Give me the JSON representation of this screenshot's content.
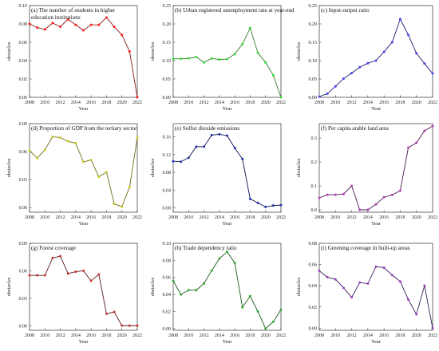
{
  "chart_data": [
    {
      "type": "line",
      "title_lines": [
        "(a) The number of students in higher",
        "education institutions"
      ],
      "xlabel": "Year",
      "ylabel": "obstacles",
      "x": [
        2008,
        2009,
        2010,
        2011,
        2012,
        2013,
        2014,
        2015,
        2016,
        2017,
        2018,
        2019,
        2020,
        2021,
        2022
      ],
      "y": [
        0.08,
        0.076,
        0.074,
        0.081,
        0.077,
        0.085,
        0.079,
        0.073,
        0.079,
        0.079,
        0.087,
        0.077,
        0.068,
        0.05,
        0.0
      ],
      "ylim": [
        0,
        0.1
      ],
      "yticks": [
        "0.00",
        "0.02",
        "0.04",
        "0.06",
        "0.08",
        "0.10"
      ],
      "xticks": [
        "2008",
        "2010",
        "2012",
        "2014",
        "2016",
        "2018",
        "2020",
        "2022"
      ],
      "line_color": "#8b1a1a",
      "marker_color": "#ff1a1a"
    },
    {
      "type": "line",
      "title_lines": [
        "(b) Urban registered unemployment rate at year-end"
      ],
      "xlabel": "Year",
      "ylabel": "obstacles",
      "x": [
        2008,
        2009,
        2010,
        2011,
        2012,
        2013,
        2014,
        2015,
        2016,
        2017,
        2018,
        2019,
        2020,
        2021,
        2022
      ],
      "y": [
        0.105,
        0.105,
        0.106,
        0.11,
        0.095,
        0.106,
        0.103,
        0.104,
        0.118,
        0.145,
        0.189,
        0.121,
        0.095,
        0.06,
        0.0
      ],
      "ylim": [
        0,
        0.25
      ],
      "yticks": [
        "0.00",
        "0.05",
        "0.10",
        "0.15",
        "0.20",
        "0.25"
      ],
      "xticks": [
        "2008",
        "2010",
        "2012",
        "2014",
        "2016",
        "2018",
        "2020",
        "2022"
      ],
      "line_color": "#2f7a2f",
      "marker_color": "#33dd33"
    },
    {
      "type": "line",
      "title_lines": [
        "(c) Input-output ratio"
      ],
      "xlabel": "Year",
      "ylabel": "obstacles",
      "x": [
        2008,
        2009,
        2010,
        2011,
        2012,
        2013,
        2014,
        2015,
        2016,
        2017,
        2018,
        2019,
        2020,
        2021,
        2022
      ],
      "y": [
        0.002,
        0.01,
        0.03,
        0.051,
        0.066,
        0.082,
        0.093,
        0.1,
        0.124,
        0.15,
        0.213,
        0.17,
        0.12,
        0.092,
        0.065
      ],
      "ylim": [
        0,
        0.25
      ],
      "yticks": [
        "0.00",
        "0.05",
        "0.10",
        "0.15",
        "0.20",
        "0.25"
      ],
      "xticks": [
        "2008",
        "2010",
        "2012",
        "2014",
        "2016",
        "2018",
        "2020",
        "2022"
      ],
      "line_color": "#1a1a6e",
      "marker_color": "#4444ee"
    },
    {
      "type": "line",
      "title_lines": [
        "(d) Proportion of GDP from the tertiary sector"
      ],
      "xlabel": "Year",
      "ylabel": "obstacles",
      "x": [
        2008,
        2009,
        2010,
        2011,
        2012,
        2013,
        2014,
        2015,
        2016,
        2017,
        2018,
        2019,
        2020,
        2021,
        2022
      ],
      "y": [
        0.061,
        0.053,
        0.062,
        0.076,
        0.075,
        0.071,
        0.069,
        0.049,
        0.051,
        0.033,
        0.038,
        0.004,
        0.001,
        0.022,
        0.075
      ],
      "ylim": [
        -0.005,
        0.09
      ],
      "yticks": [
        "0.00",
        "0.03",
        "0.06",
        "0.09"
      ],
      "xticks": [
        "2008",
        "2010",
        "2012",
        "2014",
        "2016",
        "2018",
        "2020",
        "2022"
      ],
      "line_color": "#6e6e1a",
      "marker_color": "#c8c81a"
    },
    {
      "type": "line",
      "title_lines": [
        "(e) Sulfur dioxide emissions"
      ],
      "xlabel": "Year",
      "ylabel": "obstacles",
      "x": [
        2008,
        2009,
        2010,
        2011,
        2012,
        2013,
        2014,
        2015,
        2016,
        2017,
        2018,
        2019,
        2020,
        2021,
        2022
      ],
      "y": [
        0.105,
        0.104,
        0.113,
        0.138,
        0.138,
        0.164,
        0.166,
        0.163,
        0.135,
        0.11,
        0.02,
        0.011,
        0.002,
        0.005,
        0.006
      ],
      "ylim": [
        -0.01,
        0.19
      ],
      "yticks": [
        "0.00",
        "0.04",
        "0.08",
        "0.12",
        "0.16"
      ],
      "xticks": [
        "2008",
        "2010",
        "2012",
        "2014",
        "2016",
        "2018",
        "2020",
        "2022"
      ],
      "line_color": "#0a0a4a",
      "marker_color": "#2233aa"
    },
    {
      "type": "line",
      "title_lines": [
        "(f) Per capita arable land area"
      ],
      "xlabel": "Year",
      "ylabel": "obstacles",
      "x": [
        2008,
        2009,
        2010,
        2011,
        2012,
        2013,
        2014,
        2015,
        2016,
        2017,
        2018,
        2019,
        2020,
        2021,
        2022
      ],
      "y": [
        0.05,
        0.063,
        0.063,
        0.066,
        0.1,
        0.0,
        0.0,
        0.023,
        0.053,
        0.062,
        0.08,
        0.26,
        0.28,
        0.33,
        0.35
      ],
      "ylim": [
        -0.01,
        0.36
      ],
      "yticks": [
        "0.0",
        "0.1",
        "0.2",
        "0.3"
      ],
      "xticks": [
        "2008",
        "2010",
        "2012",
        "2014",
        "2016",
        "2018",
        "2020",
        "2022"
      ],
      "line_color": "#4a1a4a",
      "marker_color": "#b040b0"
    },
    {
      "type": "line",
      "title_lines": [
        "(g) Forest coverage"
      ],
      "xlabel": "Year",
      "ylabel": "obstacles",
      "x": [
        2008,
        2009,
        2010,
        2011,
        2012,
        2013,
        2014,
        2015,
        2016,
        2017,
        2018,
        2019,
        2020,
        2021,
        2022
      ],
      "y": [
        0.055,
        0.055,
        0.055,
        0.074,
        0.076,
        0.057,
        0.059,
        0.06,
        0.049,
        0.056,
        0.013,
        0.015,
        0.0,
        0.0,
        0.0
      ],
      "ylim": [
        -0.005,
        0.09
      ],
      "yticks": [
        "0.00",
        "0.03",
        "0.06",
        "0.09"
      ],
      "xticks": [
        "2008",
        "2010",
        "2012",
        "2014",
        "2016",
        "2018",
        "2020",
        "2022"
      ],
      "line_color": "#5a1a1a",
      "marker_color": "#cc3333"
    },
    {
      "type": "line",
      "title_lines": [
        "(h) Trade dependency ratio"
      ],
      "xlabel": "Year",
      "ylabel": "obstacles",
      "x": [
        2008,
        2009,
        2010,
        2011,
        2012,
        2013,
        2014,
        2015,
        2016,
        2017,
        2018,
        2019,
        2020,
        2021,
        2022
      ],
      "y": [
        0.056,
        0.04,
        0.045,
        0.045,
        0.053,
        0.068,
        0.082,
        0.09,
        0.077,
        0.025,
        0.038,
        0.02,
        0.0,
        0.008,
        0.022
      ],
      "ylim": [
        -0.002,
        0.1
      ],
      "yticks": [
        "0.00",
        "0.02",
        "0.04",
        "0.06",
        "0.08",
        "0.10"
      ],
      "xticks": [
        "2008",
        "2010",
        "2012",
        "2014",
        "2016",
        "2018",
        "2020",
        "2022"
      ],
      "line_color": "#1a5a1a",
      "marker_color": "#33aa33"
    },
    {
      "type": "line",
      "title_lines": [
        "(i) Greening coverage in built-up areas"
      ],
      "xlabel": "Year",
      "ylabel": "obstacles",
      "x": [
        2008,
        2009,
        2010,
        2011,
        2012,
        2013,
        2014,
        2015,
        2016,
        2017,
        2018,
        2019,
        2020,
        2021,
        2022
      ],
      "y": [
        0.054,
        0.048,
        0.046,
        0.038,
        0.029,
        0.043,
        0.042,
        0.058,
        0.057,
        0.05,
        0.044,
        0.027,
        0.013,
        0.04,
        0.0
      ],
      "ylim": [
        -0.002,
        0.08
      ],
      "yticks": [
        "0.00",
        "0.02",
        "0.04",
        "0.06",
        "0.08"
      ],
      "xticks": [
        "2008",
        "2010",
        "2012",
        "2014",
        "2016",
        "2018",
        "2020",
        "2022"
      ],
      "line_color": "#3a1a5a",
      "marker_color": "#9a40c0"
    }
  ]
}
